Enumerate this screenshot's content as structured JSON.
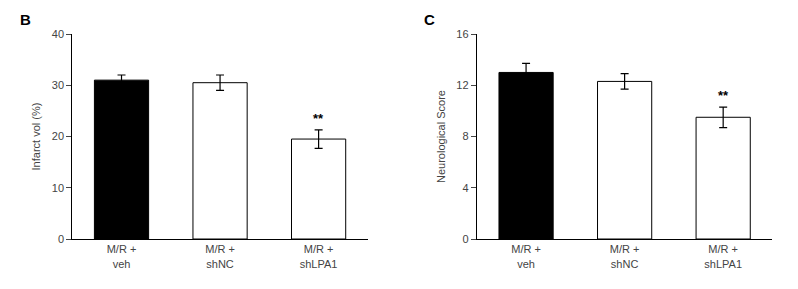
{
  "chart_data": [
    {
      "type": "bar",
      "title": "B",
      "categories": [
        "M/R +\nveh",
        "M/R +\nshNC",
        "M/R +\nshLPA1"
      ],
      "values": [
        31.0,
        30.5,
        19.5
      ],
      "errors": [
        1.0,
        1.5,
        1.8
      ],
      "colors": [
        "black",
        "white",
        "white"
      ],
      "ylabel": "Infarct vol (%)",
      "ylim": [
        0,
        40
      ],
      "yticks": [
        0,
        10,
        20,
        30,
        40
      ],
      "grid": false,
      "annotations": [
        {
          "x": "M/R +\nshLPA1",
          "text": "**"
        }
      ]
    },
    {
      "type": "bar",
      "title": "C",
      "categories": [
        "M/R +\nveh",
        "M/R +\nshNC",
        "M/R +\nshLPA1"
      ],
      "values": [
        13.0,
        12.3,
        9.5
      ],
      "errors": [
        0.7,
        0.6,
        0.8
      ],
      "colors": [
        "black",
        "white",
        "white"
      ],
      "ylabel": "Neurological Score",
      "ylim": [
        0,
        16
      ],
      "yticks": [
        0,
        4,
        8,
        12,
        16
      ],
      "grid": false,
      "annotations": [
        {
          "x": "M/R +\nshLPA1",
          "text": "**"
        }
      ]
    }
  ]
}
